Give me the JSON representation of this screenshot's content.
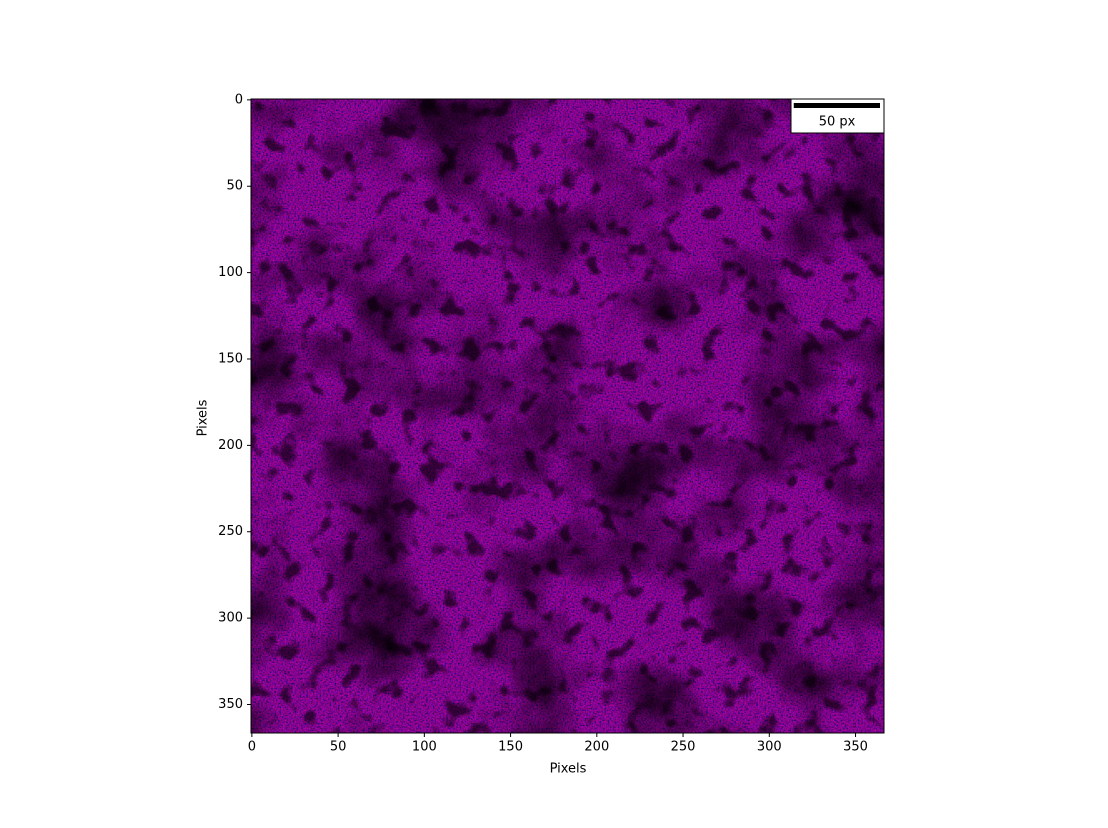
{
  "chart_data": {
    "type": "image",
    "xlabel": "Pixels",
    "ylabel": "Pixels",
    "xlim": [
      -0.5,
      366.5
    ],
    "ylim": [
      366.5,
      -0.5
    ],
    "xticks": [
      0,
      50,
      100,
      150,
      200,
      250,
      300,
      350
    ],
    "yticks": [
      0,
      50,
      100,
      150,
      200,
      250,
      300,
      350
    ],
    "scalebar": {
      "length": 50,
      "label": "50 px"
    }
  }
}
